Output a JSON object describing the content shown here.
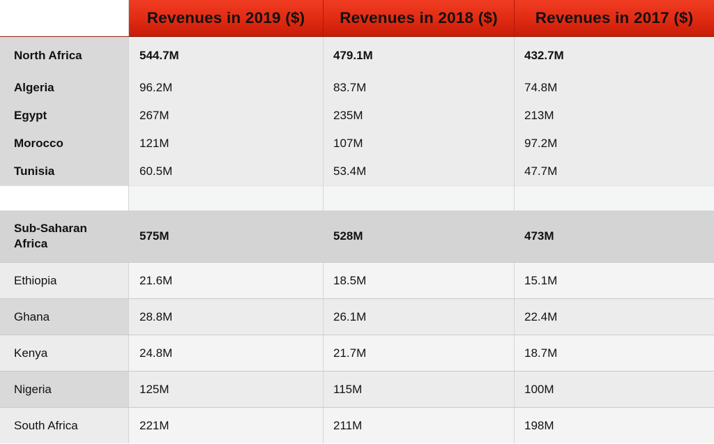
{
  "chart_data": {
    "type": "table",
    "columns": [
      "Revenues in 2019 ($)",
      "Revenues in 2018 ($)",
      "Revenues in 2017 ($)"
    ],
    "sections": [
      {
        "region": "North Africa",
        "total": [
          "544.7M",
          "479.1M",
          "432.7M"
        ],
        "countries": [
          {
            "name": "Algeria",
            "values": [
              "96.2M",
              "83.7M",
              "74.8M"
            ]
          },
          {
            "name": "Egypt",
            "values": [
              "267M",
              "235M",
              "213M"
            ]
          },
          {
            "name": "Morocco",
            "values": [
              "121M",
              "107M",
              "97.2M"
            ]
          },
          {
            "name": "Tunisia",
            "values": [
              "60.5M",
              "53.4M",
              "47.7M"
            ]
          }
        ]
      },
      {
        "region": "Sub-Saharan Africa",
        "total": [
          "575M",
          "528M",
          "473M"
        ],
        "countries": [
          {
            "name": "Ethiopia",
            "values": [
              "21.6M",
              "18.5M",
              "15.1M"
            ]
          },
          {
            "name": "Ghana",
            "values": [
              "28.8M",
              "26.1M",
              "22.4M"
            ]
          },
          {
            "name": "Kenya",
            "values": [
              "24.8M",
              "21.7M",
              "18.7M"
            ]
          },
          {
            "name": "Nigeria",
            "values": [
              "125M",
              "115M",
              "100M"
            ]
          },
          {
            "name": "South Africa",
            "values": [
              "221M",
              "211M",
              "198M"
            ]
          }
        ]
      }
    ],
    "colors": {
      "header": "#e02a12",
      "label_column_dark": "#d9d9d9",
      "label_column_light": "#ececec",
      "cell_dark": "#ececec",
      "cell_light": "#f4f4f4",
      "sub_saharan_total_row": "#d4d4d4"
    }
  }
}
